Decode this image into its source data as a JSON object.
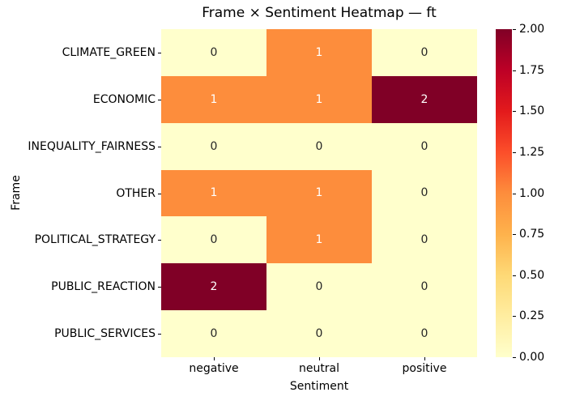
{
  "chart_data": {
    "type": "heatmap",
    "title": "Frame × Sentiment Heatmap — ft",
    "xlabel": "Sentiment",
    "ylabel": "Frame",
    "rows": [
      "CLIMATE_GREEN",
      "ECONOMIC",
      "INEQUALITY_FAIRNESS",
      "OTHER",
      "POLITICAL_STRATEGY",
      "PUBLIC_REACTION",
      "PUBLIC_SERVICES"
    ],
    "columns": [
      "negative",
      "neutral",
      "positive"
    ],
    "values": [
      [
        0,
        1,
        0
      ],
      [
        1,
        1,
        2
      ],
      [
        0,
        0,
        0
      ],
      [
        1,
        1,
        0
      ],
      [
        0,
        1,
        0
      ],
      [
        2,
        0,
        0
      ],
      [
        0,
        0,
        0
      ]
    ],
    "vmin": 0,
    "vmax": 2,
    "legend_position": "right-colorbar",
    "grid": false,
    "colorbar_tick_labels_top_to_bottom": [
      "2.00",
      "1.75",
      "1.50",
      "1.25",
      "1.00",
      "0.75",
      "0.50",
      "0.25",
      "0.00"
    ],
    "colormap": {
      "name": "YlOrRd",
      "value_colors": {
        "0": "#ffffcc",
        "1": "#fd8d3c",
        "2": "#800026"
      },
      "value_text_colors": {
        "0": "#262626",
        "1": "#ffffff",
        "2": "#ffffff"
      },
      "gradient_stops_bottom_to_top": [
        "#ffffcc",
        "#ffeda0",
        "#fed976",
        "#feb24c",
        "#fd8d3c",
        "#fc4e2a",
        "#e31a1c",
        "#bd0026",
        "#800026"
      ]
    }
  }
}
